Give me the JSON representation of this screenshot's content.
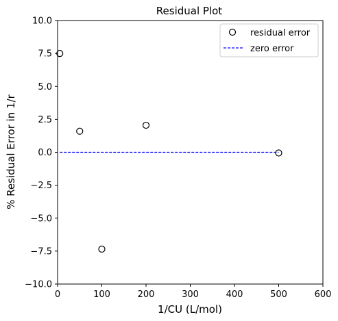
{
  "chart_data": {
    "type": "scatter",
    "title": "Residual Plot",
    "xlabel": "1/CU (L/mol)",
    "ylabel": "% Residual Error in 1/r",
    "xlim": [
      0,
      600
    ],
    "ylim": [
      -10.0,
      10.0
    ],
    "x_ticks": [
      "0",
      "100",
      "200",
      "300",
      "400",
      "500",
      "600"
    ],
    "y_ticks": [
      "−10.0",
      "−7.5",
      "−5.0",
      "−2.5",
      "0.0",
      "2.5",
      "5.0",
      "7.5",
      "10.0"
    ],
    "x_tick_values": [
      0,
      100,
      200,
      300,
      400,
      500,
      600
    ],
    "y_tick_values": [
      -10.0,
      -7.5,
      -5.0,
      -2.5,
      0.0,
      2.5,
      5.0,
      7.5,
      10.0
    ],
    "grid": false,
    "legend_position": "top-right",
    "series": [
      {
        "name": "residual error",
        "kind": "scatter",
        "marker": "open-circle",
        "color": "#000000",
        "x": [
          5,
          50,
          100,
          200,
          500
        ],
        "y": [
          7.5,
          1.6,
          -7.35,
          2.05,
          -0.05
        ]
      },
      {
        "name": "zero error",
        "kind": "line",
        "style": "dashed",
        "color": "#0000ff",
        "x": [
          5,
          500
        ],
        "y": [
          0,
          0
        ]
      }
    ]
  }
}
